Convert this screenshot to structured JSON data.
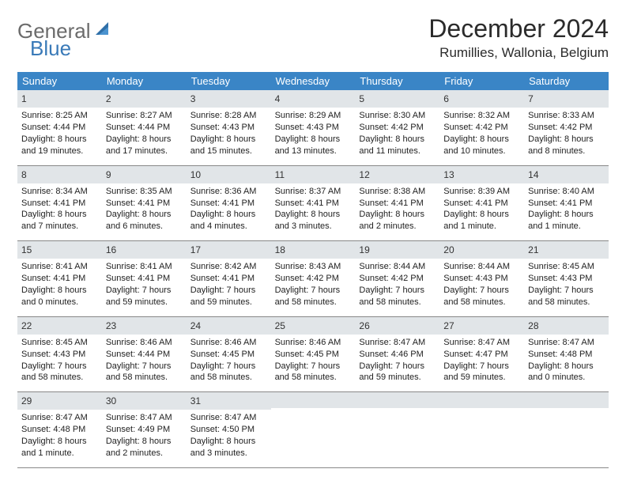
{
  "brand": {
    "part1": "General",
    "part2": "Blue"
  },
  "title": "December 2024",
  "location": "Rumillies, Wallonia, Belgium",
  "colors": {
    "header_bg": "#3a85c6",
    "header_text": "#ffffff",
    "daynum_bg": "#e1e5e8",
    "text": "#222222",
    "logo_gray": "#6b6b6b",
    "logo_blue": "#3a7ab8"
  },
  "day_names": [
    "Sunday",
    "Monday",
    "Tuesday",
    "Wednesday",
    "Thursday",
    "Friday",
    "Saturday"
  ],
  "weeks": [
    [
      {
        "n": "1",
        "sr": "Sunrise: 8:25 AM",
        "ss": "Sunset: 4:44 PM",
        "dl": "Daylight: 8 hours and 19 minutes."
      },
      {
        "n": "2",
        "sr": "Sunrise: 8:27 AM",
        "ss": "Sunset: 4:44 PM",
        "dl": "Daylight: 8 hours and 17 minutes."
      },
      {
        "n": "3",
        "sr": "Sunrise: 8:28 AM",
        "ss": "Sunset: 4:43 PM",
        "dl": "Daylight: 8 hours and 15 minutes."
      },
      {
        "n": "4",
        "sr": "Sunrise: 8:29 AM",
        "ss": "Sunset: 4:43 PM",
        "dl": "Daylight: 8 hours and 13 minutes."
      },
      {
        "n": "5",
        "sr": "Sunrise: 8:30 AM",
        "ss": "Sunset: 4:42 PM",
        "dl": "Daylight: 8 hours and 11 minutes."
      },
      {
        "n": "6",
        "sr": "Sunrise: 8:32 AM",
        "ss": "Sunset: 4:42 PM",
        "dl": "Daylight: 8 hours and 10 minutes."
      },
      {
        "n": "7",
        "sr": "Sunrise: 8:33 AM",
        "ss": "Sunset: 4:42 PM",
        "dl": "Daylight: 8 hours and 8 minutes."
      }
    ],
    [
      {
        "n": "8",
        "sr": "Sunrise: 8:34 AM",
        "ss": "Sunset: 4:41 PM",
        "dl": "Daylight: 8 hours and 7 minutes."
      },
      {
        "n": "9",
        "sr": "Sunrise: 8:35 AM",
        "ss": "Sunset: 4:41 PM",
        "dl": "Daylight: 8 hours and 6 minutes."
      },
      {
        "n": "10",
        "sr": "Sunrise: 8:36 AM",
        "ss": "Sunset: 4:41 PM",
        "dl": "Daylight: 8 hours and 4 minutes."
      },
      {
        "n": "11",
        "sr": "Sunrise: 8:37 AM",
        "ss": "Sunset: 4:41 PM",
        "dl": "Daylight: 8 hours and 3 minutes."
      },
      {
        "n": "12",
        "sr": "Sunrise: 8:38 AM",
        "ss": "Sunset: 4:41 PM",
        "dl": "Daylight: 8 hours and 2 minutes."
      },
      {
        "n": "13",
        "sr": "Sunrise: 8:39 AM",
        "ss": "Sunset: 4:41 PM",
        "dl": "Daylight: 8 hours and 1 minute."
      },
      {
        "n": "14",
        "sr": "Sunrise: 8:40 AM",
        "ss": "Sunset: 4:41 PM",
        "dl": "Daylight: 8 hours and 1 minute."
      }
    ],
    [
      {
        "n": "15",
        "sr": "Sunrise: 8:41 AM",
        "ss": "Sunset: 4:41 PM",
        "dl": "Daylight: 8 hours and 0 minutes."
      },
      {
        "n": "16",
        "sr": "Sunrise: 8:41 AM",
        "ss": "Sunset: 4:41 PM",
        "dl": "Daylight: 7 hours and 59 minutes."
      },
      {
        "n": "17",
        "sr": "Sunrise: 8:42 AM",
        "ss": "Sunset: 4:41 PM",
        "dl": "Daylight: 7 hours and 59 minutes."
      },
      {
        "n": "18",
        "sr": "Sunrise: 8:43 AM",
        "ss": "Sunset: 4:42 PM",
        "dl": "Daylight: 7 hours and 58 minutes."
      },
      {
        "n": "19",
        "sr": "Sunrise: 8:44 AM",
        "ss": "Sunset: 4:42 PM",
        "dl": "Daylight: 7 hours and 58 minutes."
      },
      {
        "n": "20",
        "sr": "Sunrise: 8:44 AM",
        "ss": "Sunset: 4:43 PM",
        "dl": "Daylight: 7 hours and 58 minutes."
      },
      {
        "n": "21",
        "sr": "Sunrise: 8:45 AM",
        "ss": "Sunset: 4:43 PM",
        "dl": "Daylight: 7 hours and 58 minutes."
      }
    ],
    [
      {
        "n": "22",
        "sr": "Sunrise: 8:45 AM",
        "ss": "Sunset: 4:43 PM",
        "dl": "Daylight: 7 hours and 58 minutes."
      },
      {
        "n": "23",
        "sr": "Sunrise: 8:46 AM",
        "ss": "Sunset: 4:44 PM",
        "dl": "Daylight: 7 hours and 58 minutes."
      },
      {
        "n": "24",
        "sr": "Sunrise: 8:46 AM",
        "ss": "Sunset: 4:45 PM",
        "dl": "Daylight: 7 hours and 58 minutes."
      },
      {
        "n": "25",
        "sr": "Sunrise: 8:46 AM",
        "ss": "Sunset: 4:45 PM",
        "dl": "Daylight: 7 hours and 58 minutes."
      },
      {
        "n": "26",
        "sr": "Sunrise: 8:47 AM",
        "ss": "Sunset: 4:46 PM",
        "dl": "Daylight: 7 hours and 59 minutes."
      },
      {
        "n": "27",
        "sr": "Sunrise: 8:47 AM",
        "ss": "Sunset: 4:47 PM",
        "dl": "Daylight: 7 hours and 59 minutes."
      },
      {
        "n": "28",
        "sr": "Sunrise: 8:47 AM",
        "ss": "Sunset: 4:48 PM",
        "dl": "Daylight: 8 hours and 0 minutes."
      }
    ],
    [
      {
        "n": "29",
        "sr": "Sunrise: 8:47 AM",
        "ss": "Sunset: 4:48 PM",
        "dl": "Daylight: 8 hours and 1 minute."
      },
      {
        "n": "30",
        "sr": "Sunrise: 8:47 AM",
        "ss": "Sunset: 4:49 PM",
        "dl": "Daylight: 8 hours and 2 minutes."
      },
      {
        "n": "31",
        "sr": "Sunrise: 8:47 AM",
        "ss": "Sunset: 4:50 PM",
        "dl": "Daylight: 8 hours and 3 minutes."
      },
      {
        "empty": true
      },
      {
        "empty": true
      },
      {
        "empty": true
      },
      {
        "empty": true
      }
    ]
  ]
}
